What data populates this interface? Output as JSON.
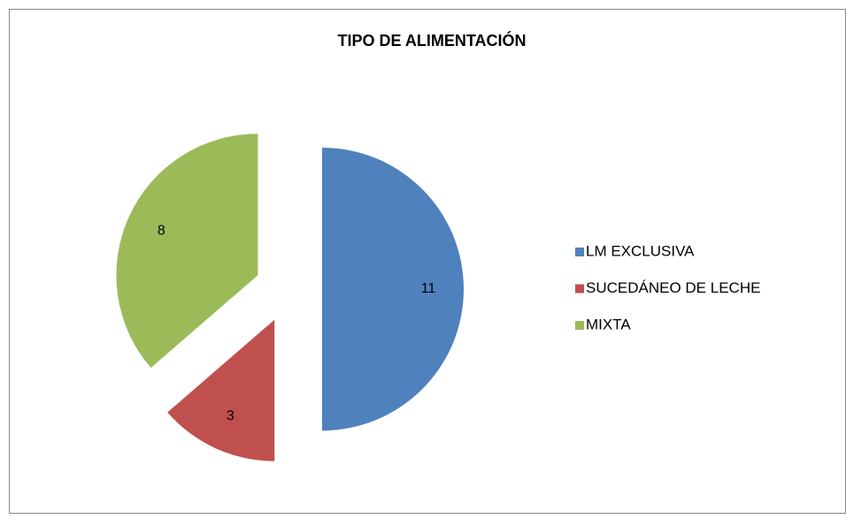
{
  "chart_data": {
    "type": "pie",
    "title": "TIPO DE ALIMENTACIÓN",
    "categories": [
      "LM EXCLUSIVA",
      "SUCEDÁNEO DE LECHE",
      "MIXTA"
    ],
    "values": [
      11,
      3,
      8
    ],
    "colors": [
      "#4f81bd",
      "#c0504d",
      "#9bbb59"
    ],
    "legend": "right"
  }
}
